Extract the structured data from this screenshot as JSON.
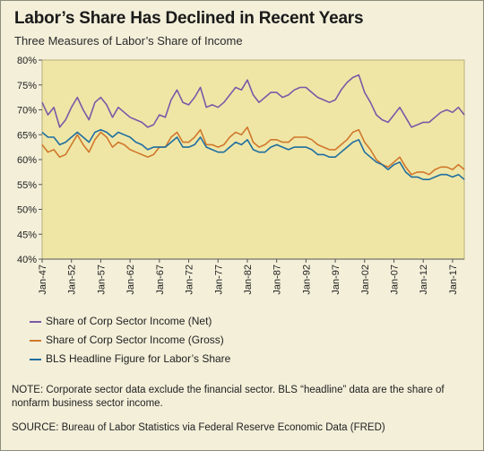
{
  "title": "Labor’s Share Has Declined in Recent Years",
  "subtitle": "Three Measures of Labor’s Share of Income",
  "chart_data": {
    "type": "line",
    "ylim": [
      40,
      80
    ],
    "y_ticks": [
      "80%",
      "75%",
      "70%",
      "65%",
      "60%",
      "55%",
      "50%",
      "45%",
      "40%"
    ],
    "y_tick_values": [
      80,
      75,
      70,
      65,
      60,
      55,
      50,
      45,
      40
    ],
    "xlim": [
      1947,
      2019
    ],
    "x_ticks": [
      "Jan-47",
      "Jan-52",
      "Jan-57",
      "Jan-62",
      "Jan-67",
      "Jan-72",
      "Jan-77",
      "Jan-82",
      "Jan-87",
      "Jan-92",
      "Jan-97",
      "Jan-02",
      "Jan-07",
      "Jan-12",
      "Jan-17"
    ],
    "x_tick_values": [
      1947,
      1952,
      1957,
      1962,
      1967,
      1972,
      1977,
      1982,
      1987,
      1992,
      1997,
      2002,
      2007,
      2012,
      2017
    ],
    "grid": false,
    "colors": {
      "plot_bg": "#efe6a6",
      "panel_bg": "#f3efd9"
    },
    "series": [
      {
        "name": "Share of Corp Sector Income (Net)",
        "color": "#7a59a6",
        "x": [
          1947,
          1948,
          1949,
          1950,
          1951,
          1952,
          1953,
          1954,
          1955,
          1956,
          1957,
          1958,
          1959,
          1960,
          1961,
          1962,
          1963,
          1964,
          1965,
          1966,
          1967,
          1968,
          1969,
          1970,
          1971,
          1972,
          1973,
          1974,
          1975,
          1976,
          1977,
          1978,
          1979,
          1980,
          1981,
          1982,
          1983,
          1984,
          1985,
          1986,
          1987,
          1988,
          1989,
          1990,
          1991,
          1992,
          1993,
          1994,
          1995,
          1996,
          1997,
          1998,
          1999,
          2000,
          2001,
          2002,
          2003,
          2004,
          2005,
          2006,
          2007,
          2008,
          2009,
          2010,
          2011,
          2012,
          2013,
          2014,
          2015,
          2016,
          2017,
          2018,
          2019
        ],
        "y": [
          71.5,
          69.0,
          70.5,
          66.5,
          68.0,
          70.5,
          72.5,
          70.0,
          68.0,
          71.5,
          72.5,
          71.0,
          68.5,
          70.5,
          69.5,
          68.5,
          68.0,
          67.5,
          66.5,
          67.0,
          69.0,
          68.5,
          72.0,
          74.0,
          71.5,
          71.0,
          72.5,
          74.5,
          70.5,
          71.0,
          70.5,
          71.5,
          73.0,
          74.5,
          74.0,
          76.0,
          73.0,
          71.5,
          72.5,
          73.5,
          73.5,
          72.5,
          73.0,
          74.0,
          74.5,
          74.5,
          73.5,
          72.5,
          72.0,
          71.5,
          72.0,
          74.0,
          75.5,
          76.5,
          77.0,
          73.5,
          71.5,
          69.0,
          68.0,
          67.5,
          69.0,
          70.5,
          68.5,
          66.5,
          67.0,
          67.5,
          67.5,
          68.5,
          69.5,
          70.0,
          69.5,
          70.5,
          69.0
        ]
      },
      {
        "name": "Share of Corp Sector Income (Gross)",
        "color": "#d0782c",
        "x": [
          1947,
          1948,
          1949,
          1950,
          1951,
          1952,
          1953,
          1954,
          1955,
          1956,
          1957,
          1958,
          1959,
          1960,
          1961,
          1962,
          1963,
          1964,
          1965,
          1966,
          1967,
          1968,
          1969,
          1970,
          1971,
          1972,
          1973,
          1974,
          1975,
          1976,
          1977,
          1978,
          1979,
          1980,
          1981,
          1982,
          1983,
          1984,
          1985,
          1986,
          1987,
          1988,
          1989,
          1990,
          1991,
          1992,
          1993,
          1994,
          1995,
          1996,
          1997,
          1998,
          1999,
          2000,
          2001,
          2002,
          2003,
          2004,
          2005,
          2006,
          2007,
          2008,
          2009,
          2010,
          2011,
          2012,
          2013,
          2014,
          2015,
          2016,
          2017,
          2018,
          2019
        ],
        "y": [
          63.0,
          61.5,
          62.0,
          60.5,
          61.0,
          63.0,
          65.0,
          63.0,
          61.5,
          64.0,
          65.5,
          64.5,
          62.5,
          63.5,
          63.0,
          62.0,
          61.5,
          61.0,
          60.5,
          61.0,
          62.5,
          62.5,
          64.5,
          65.5,
          63.5,
          63.5,
          64.5,
          66.0,
          63.0,
          63.0,
          62.5,
          63.0,
          64.5,
          65.5,
          65.0,
          66.5,
          63.5,
          62.5,
          63.0,
          64.0,
          64.0,
          63.5,
          63.5,
          64.5,
          64.5,
          64.5,
          64.0,
          63.0,
          62.5,
          62.0,
          62.0,
          63.0,
          64.0,
          65.5,
          66.0,
          63.5,
          62.0,
          60.0,
          59.0,
          58.5,
          59.5,
          60.5,
          58.5,
          57.0,
          57.5,
          57.5,
          57.0,
          58.0,
          58.5,
          58.5,
          58.0,
          59.0,
          58.0
        ]
      },
      {
        "name": "BLS Headline Figure for Labor’s Share",
        "color": "#1f6ea0",
        "x": [
          1947,
          1948,
          1949,
          1950,
          1951,
          1952,
          1953,
          1954,
          1955,
          1956,
          1957,
          1958,
          1959,
          1960,
          1961,
          1962,
          1963,
          1964,
          1965,
          1966,
          1967,
          1968,
          1969,
          1970,
          1971,
          1972,
          1973,
          1974,
          1975,
          1976,
          1977,
          1978,
          1979,
          1980,
          1981,
          1982,
          1983,
          1984,
          1985,
          1986,
          1987,
          1988,
          1989,
          1990,
          1991,
          1992,
          1993,
          1994,
          1995,
          1996,
          1997,
          1998,
          1999,
          2000,
          2001,
          2002,
          2003,
          2004,
          2005,
          2006,
          2007,
          2008,
          2009,
          2010,
          2011,
          2012,
          2013,
          2014,
          2015,
          2016,
          2017,
          2018,
          2019
        ],
        "y": [
          65.5,
          64.5,
          64.5,
          63.0,
          63.5,
          64.5,
          65.5,
          64.5,
          63.5,
          65.5,
          66.0,
          65.5,
          64.5,
          65.5,
          65.0,
          64.5,
          63.5,
          63.0,
          62.0,
          62.5,
          62.5,
          62.5,
          63.5,
          64.5,
          62.5,
          62.5,
          63.0,
          64.5,
          62.5,
          62.0,
          61.5,
          61.5,
          62.5,
          63.5,
          63.0,
          64.0,
          62.0,
          61.5,
          61.5,
          62.5,
          63.0,
          62.5,
          62.0,
          62.5,
          62.5,
          62.5,
          62.0,
          61.0,
          61.0,
          60.5,
          60.5,
          61.5,
          62.5,
          63.5,
          64.0,
          61.5,
          60.5,
          59.5,
          59.0,
          58.0,
          59.0,
          59.5,
          57.5,
          56.5,
          56.5,
          56.0,
          56.0,
          56.5,
          57.0,
          57.0,
          56.5,
          57.0,
          56.0
        ]
      }
    ]
  },
  "note": "NOTE: Corporate sector data exclude the financial sector. BLS “headline” data are the share of nonfarm business sector income.",
  "source": "SOURCE: Bureau of Labor Statistics via Federal Reserve Economic Data (FRED)"
}
